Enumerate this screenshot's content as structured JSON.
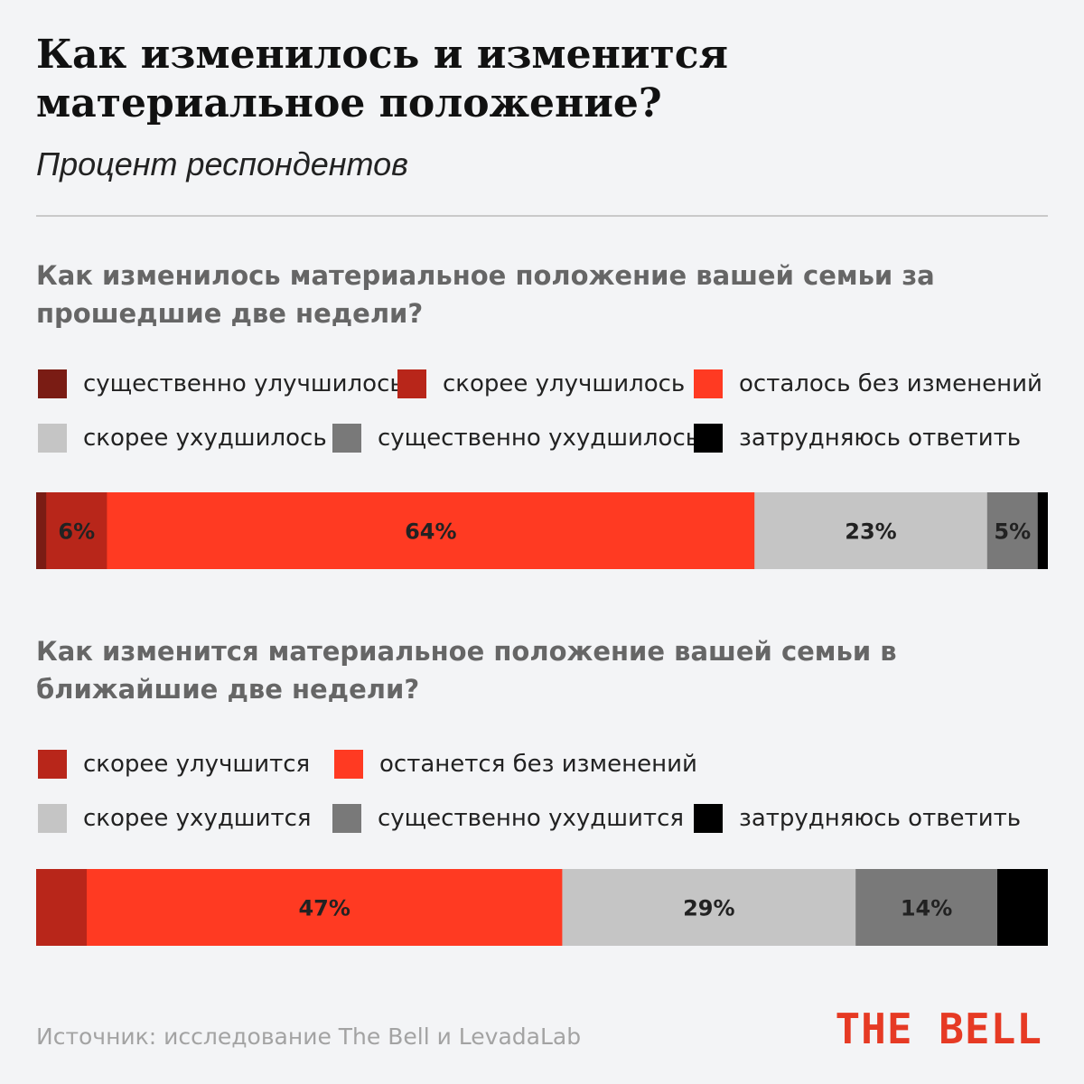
{
  "header": {
    "title": "Как изменилось и изменится материальное положение?",
    "subtitle": "Процент респондентов"
  },
  "colors": {
    "dark_red": "#7a1c14",
    "red": "#b8261a",
    "bright_red": "#ff3a22",
    "light_gray": "#c5c5c5",
    "dark_gray": "#797979",
    "black": "#000000",
    "brand": "#e63a24"
  },
  "chart_data": [
    {
      "type": "bar",
      "orientation": "horizontal-stacked",
      "title": "Как изменилось материальное положение вашей семьи за прошедшие две недели?",
      "xlim": [
        0,
        100
      ],
      "series": [
        {
          "name": "существенно улучшилось",
          "value": 1,
          "color": "#7a1c14",
          "label": ""
        },
        {
          "name": "скорее улучшилось",
          "value": 6,
          "color": "#b8261a",
          "label": "6%"
        },
        {
          "name": "осталось без изменений",
          "value": 64,
          "color": "#ff3a22",
          "label": "64%"
        },
        {
          "name": "скорее ухудшилось",
          "value": 23,
          "color": "#c5c5c5",
          "label": "23%"
        },
        {
          "name": "существенно ухудшилось",
          "value": 5,
          "color": "#797979",
          "label": "5%"
        },
        {
          "name": "затрудняюсь ответить",
          "value": 1,
          "color": "#000000",
          "label": ""
        }
      ]
    },
    {
      "type": "bar",
      "orientation": "horizontal-stacked",
      "title": "Как изменится материальное положение вашей семьи в ближайшие две недели?",
      "xlim": [
        0,
        100
      ],
      "series": [
        {
          "name": "скорее улучшится",
          "value": 5,
          "color": "#b8261a",
          "label": ""
        },
        {
          "name": "останется без изменений",
          "value": 47,
          "color": "#ff3a22",
          "label": "47%"
        },
        {
          "name": "скорее ухудшится",
          "value": 29,
          "color": "#c5c5c5",
          "label": "29%"
        },
        {
          "name": "существенно ухудшится",
          "value": 14,
          "color": "#797979",
          "label": "14%"
        },
        {
          "name": "затрудняюсь ответить",
          "value": 5,
          "color": "#000000",
          "label": ""
        }
      ]
    }
  ],
  "footer": {
    "source": "Источник: исследование The Bell и LevadaLab",
    "logo": "THE BELL"
  }
}
